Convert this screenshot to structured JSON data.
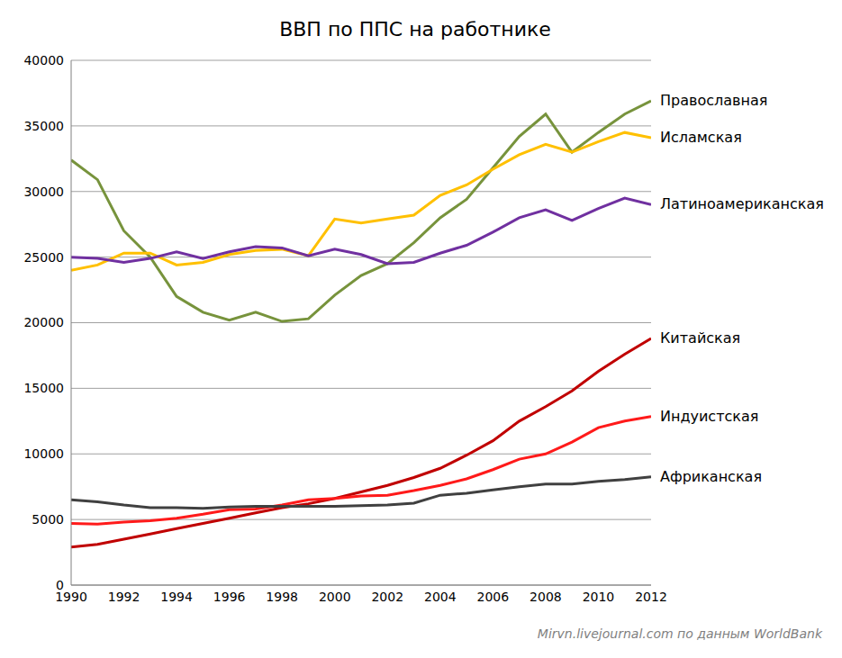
{
  "chart_data": {
    "type": "line",
    "title": "ВВП по ППС на работнике",
    "source": "Mirvn.livejournal.com по данным WorldBank",
    "x": [
      1990,
      1991,
      1992,
      1993,
      1994,
      1995,
      1996,
      1997,
      1998,
      1999,
      2000,
      2001,
      2002,
      2003,
      2004,
      2005,
      2006,
      2007,
      2008,
      2009,
      2010,
      2011,
      2012
    ],
    "xlim": [
      1990,
      2012
    ],
    "xticks": [
      1990,
      1992,
      1994,
      1996,
      1998,
      2000,
      2002,
      2004,
      2006,
      2008,
      2010,
      2012
    ],
    "ylim": [
      0,
      40000
    ],
    "yticks": [
      0,
      5000,
      10000,
      15000,
      20000,
      25000,
      30000,
      35000,
      40000
    ],
    "grid": true,
    "series": [
      {
        "name": "Православная",
        "color": "#77933c",
        "values": [
          32400,
          30900,
          27000,
          25000,
          22000,
          20800,
          20200,
          20800,
          20100,
          20300,
          22100,
          23600,
          24500,
          26100,
          28000,
          29400,
          31800,
          34200,
          35900,
          33000,
          34500,
          35900,
          36900
        ]
      },
      {
        "name": "Исламская",
        "color": "#ffc000",
        "values": [
          24000,
          24400,
          25300,
          25300,
          24400,
          24600,
          25200,
          25500,
          25600,
          25100,
          27900,
          27600,
          27900,
          28200,
          29700,
          30500,
          31700,
          32800,
          33600,
          33000,
          33800,
          34500,
          34100
        ]
      },
      {
        "name": "Латиноамериканская",
        "color": "#7030a0",
        "values": [
          25000,
          24900,
          24600,
          24900,
          25400,
          24900,
          25400,
          25800,
          25700,
          25100,
          25600,
          25200,
          24500,
          24600,
          25300,
          25900,
          26900,
          28000,
          28600,
          27800,
          28700,
          29500,
          29000
        ]
      },
      {
        "name": "Китайская",
        "color": "#c00000",
        "values": [
          2900,
          3100,
          3500,
          3900,
          4300,
          4700,
          5100,
          5500,
          5900,
          6200,
          6600,
          7100,
          7600,
          8200,
          8900,
          9900,
          11000,
          12500,
          13600,
          14800,
          16300,
          17600,
          18800
        ]
      },
      {
        "name": "Индуистская",
        "color": "#ff1a1a",
        "values": [
          4700,
          4650,
          4800,
          4900,
          5100,
          5400,
          5750,
          5800,
          6100,
          6500,
          6600,
          6800,
          6850,
          7200,
          7600,
          8100,
          8800,
          9600,
          10000,
          10900,
          12000,
          12500,
          12850
        ]
      },
      {
        "name": "Африканская",
        "color": "#404040",
        "values": [
          6500,
          6350,
          6100,
          5900,
          5900,
          5850,
          5950,
          6000,
          6000,
          6000,
          6000,
          6050,
          6100,
          6250,
          6850,
          7000,
          7250,
          7500,
          7700,
          7700,
          7900,
          8050,
          8250
        ]
      }
    ]
  }
}
